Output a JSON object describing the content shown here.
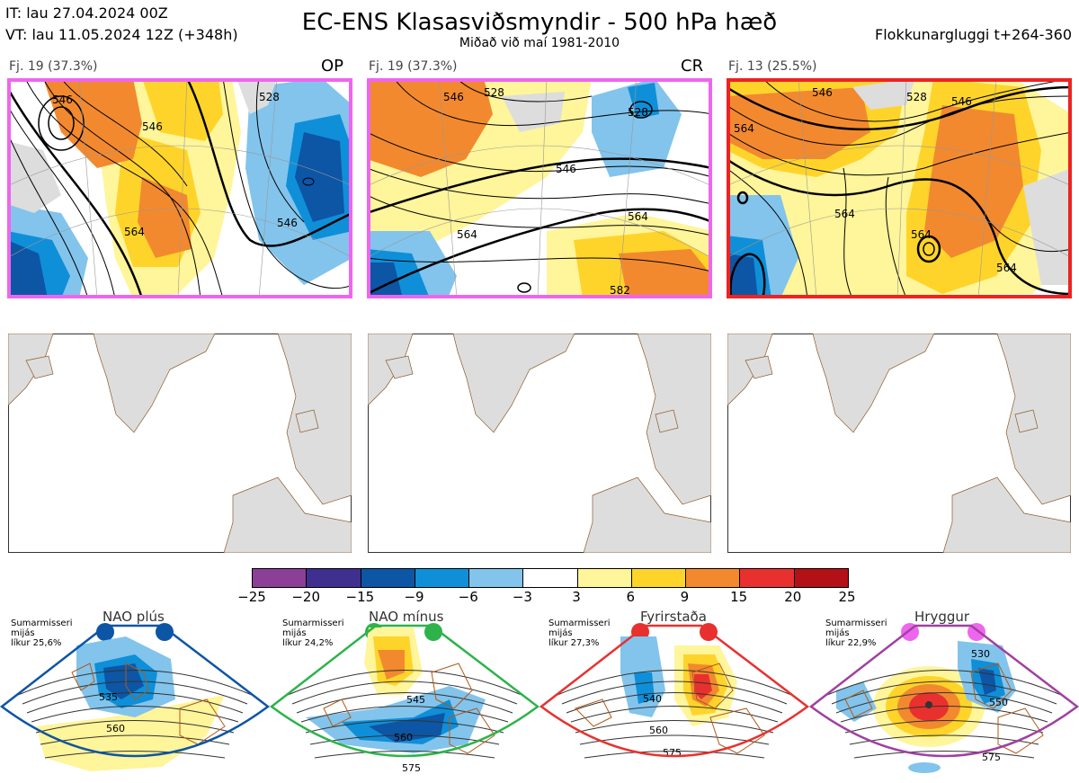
{
  "header": {
    "it": "IT: lau 27.04.2024 00Z",
    "vt": "VT: lau 11.05.2024 12Z  (+348h)",
    "title": "EC-ENS Klasasviðsmyndir - 500 hPa hæð",
    "subtitle": "Miðað við maí 1981-2010",
    "window": "Flokkunargluggi t+264-360"
  },
  "clusters": [
    {
      "label": "Fj. 19 (37.3%)",
      "tag": "OP",
      "border": "#ee66ee",
      "contours": [
        "546",
        "546",
        "528",
        "564",
        "546"
      ]
    },
    {
      "label": "Fj. 19 (37.3%)",
      "tag": "CR",
      "border": "#ee66ee",
      "contours": [
        "546",
        "528",
        "528",
        "546",
        "564",
        "564",
        "582"
      ]
    },
    {
      "label": "Fj. 13 (25.5%)",
      "tag": "",
      "border": "#ee2222",
      "contours": [
        "546",
        "528",
        "546",
        "564",
        "564",
        "564",
        "564"
      ]
    }
  ],
  "colorbar": {
    "ticks": [
      "−25",
      "−20",
      "−15",
      "−9",
      "−6",
      "−3",
      "3",
      "6",
      "9",
      "15",
      "20",
      "25"
    ],
    "colors": [
      "#8b3f96",
      "#3f2f8f",
      "#0d55a5",
      "#0f8fd8",
      "#82c4ec",
      "#ffffff",
      "#fff59a",
      "#ffd42a",
      "#f2892f",
      "#e8312e",
      "#b41117"
    ]
  },
  "regimes": [
    {
      "name": "NAO plús",
      "season": "Sumarmisseri",
      "mid": "mijás",
      "prob": "líkur 25,6%",
      "color": "#0d55a5",
      "labels": [
        "535",
        "560"
      ]
    },
    {
      "name": "NAO mínus",
      "season": "Sumarmisseri",
      "mid": "mijás",
      "prob": "líkur 24,2%",
      "color": "#2db34a",
      "labels": [
        "545",
        "560",
        "575"
      ]
    },
    {
      "name": "Fyrirstaða",
      "season": "Sumarmisseri",
      "mid": "mijás",
      "prob": "líkur 27,3%",
      "color": "#e8312e",
      "labels": [
        "540",
        "560",
        "575"
      ]
    },
    {
      "name": "Hryggur",
      "season": "Sumarmisseri",
      "mid": "mijás",
      "prob": "líkur 22,9%",
      "color": "#ee66ee",
      "labels": [
        "530",
        "550",
        "575"
      ]
    }
  ]
}
